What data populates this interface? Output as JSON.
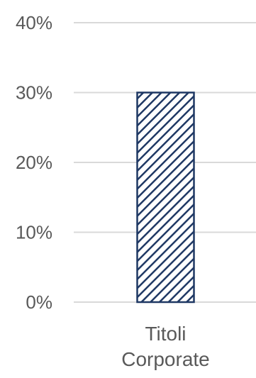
{
  "chart_data": {
    "type": "bar",
    "title": "",
    "xlabel": "",
    "ylabel": "",
    "categories": [
      [
        "Titoli",
        "Corporate"
      ]
    ],
    "values": [
      30
    ],
    "ylim": [
      0,
      40
    ],
    "yticks": [
      {
        "value": 0,
        "label": "0%"
      },
      {
        "value": 10,
        "label": "10%"
      },
      {
        "value": 20,
        "label": "20%"
      },
      {
        "value": 30,
        "label": "30%"
      },
      {
        "value": 40,
        "label": "40%"
      }
    ],
    "grid": true,
    "legend": "none",
    "colors": {
      "bar_stroke": "#1f3864",
      "bar_hatch": "#1f3864",
      "bar_fill": "#ffffff",
      "grid": "#d9d9d9",
      "text": "#595959"
    }
  }
}
